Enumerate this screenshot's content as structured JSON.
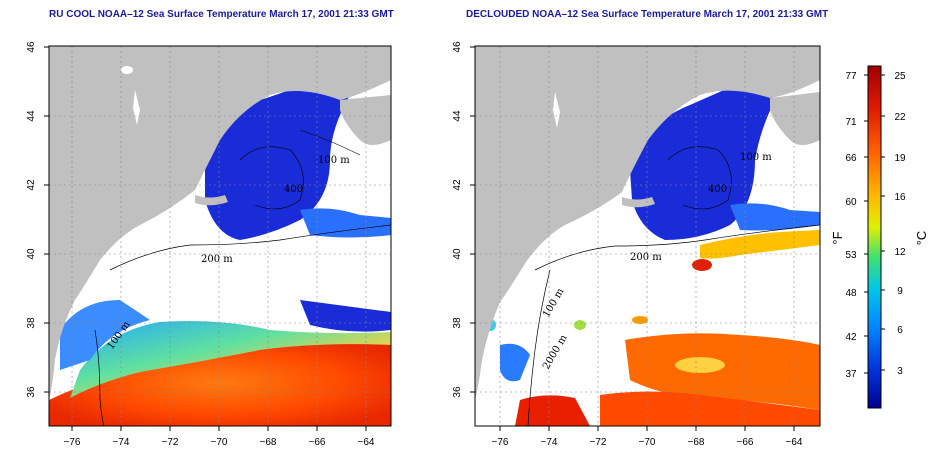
{
  "titles": {
    "left": "RU COOL NOAA–12 Sea Surface Temperature March 17, 2001 21:33 GMT",
    "right": "DECLOUDED NOAA–12 Sea Surface Temperature March 17, 2001 21:33 GMT"
  },
  "axes": {
    "lon_ticks": [
      "−76",
      "−74",
      "−72",
      "−70",
      "−68",
      "−66",
      "−64"
    ],
    "lat_ticks": [
      "46",
      "44",
      "42",
      "40",
      "38",
      "36"
    ]
  },
  "contour_labels": {
    "left": [
      "100 m",
      "400",
      "200 m",
      "100 m"
    ],
    "right": [
      "100 m",
      "400",
      "200 m",
      "100 m",
      "2000 m"
    ]
  },
  "colorbar": {
    "fahrenheit_label": "°F",
    "celsius_label": "°C",
    "fahrenheit_ticks": [
      "77",
      "71",
      "66",
      "60",
      "53",
      "48",
      "42",
      "37"
    ],
    "celsius_ticks": [
      "25",
      "22",
      "19",
      "16",
      "12",
      "9",
      "6",
      "3"
    ],
    "colors": [
      "#b00000",
      "#e81c00",
      "#ff6a00",
      "#ffc000",
      "#d8f000",
      "#38e070",
      "#00c8e0",
      "#0090ff",
      "#0040e0",
      "#0000a8"
    ]
  },
  "colors": {
    "land": "#c0c0c0",
    "cloud": "#ffffff",
    "cold_water": "#1a2cd8",
    "warm_water": "#ff5a00",
    "title_text": "#1a1a9c"
  }
}
